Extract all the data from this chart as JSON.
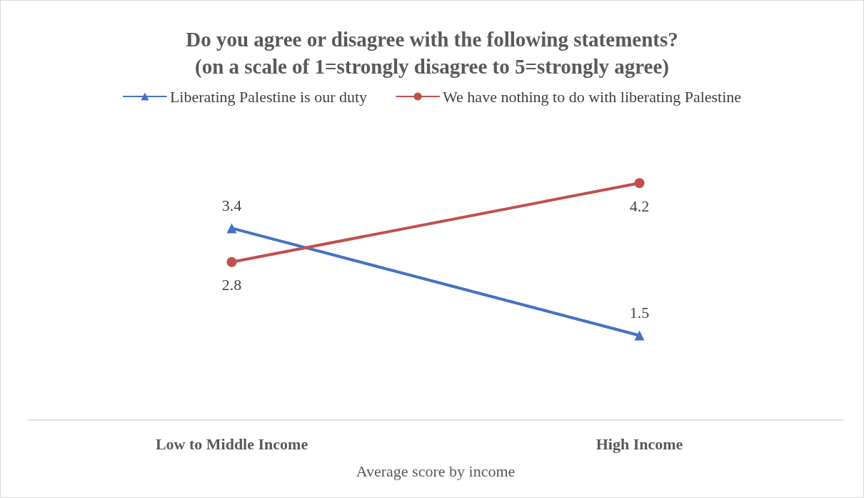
{
  "chart_data": {
    "type": "line",
    "title": "Do you agree or disagree with the following statements?\n(on a scale of 1=strongly disagree to 5=strongly agree)",
    "xlabel": "Average score by income",
    "categories": [
      "Low to Middle Income",
      "High Income"
    ],
    "series": [
      {
        "name": "Liberating Palestine is our duty",
        "color": "#4472c4",
        "values": [
          3.4,
          1.5
        ],
        "marker": "triangle"
      },
      {
        "name": "We have nothing to do with liberating Palestine",
        "color": "#c0504d",
        "values": [
          2.8,
          4.2
        ],
        "marker": "circle"
      }
    ],
    "tick_labels": "x",
    "data_labels": true,
    "legend": "top",
    "grid": false,
    "line_style": "solid"
  }
}
